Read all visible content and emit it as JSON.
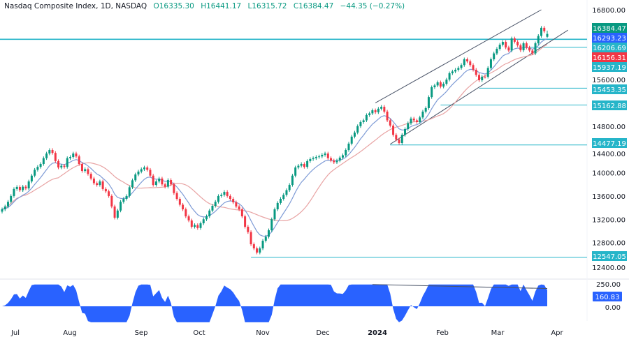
{
  "header": {
    "symbol": "Nasdaq Composite Index, 1D, NASDAQ",
    "open": "O16335.30",
    "high": "H16441.17",
    "low": "L16315.72",
    "close": "C16384.47",
    "change": "−44.35 (−0.27%)"
  },
  "colors": {
    "up": "#089981",
    "down": "#f23645",
    "ma_fast": "#7e9bd6",
    "ma_slow": "#e8a3a3",
    "level": "#26b5c9",
    "oscillator": "#2962ff",
    "trendline": "#4a5468"
  },
  "chart_data": {
    "type": "candlestick",
    "title": "Nasdaq Composite Index, 1D, NASDAQ",
    "ylim": [
      12250,
      16950
    ],
    "y_ticks": [
      "16800.00",
      "15600.00",
      "14800.00",
      "14400.00",
      "14000.00",
      "13600.00",
      "13200.00",
      "12800.00",
      "12400.00"
    ],
    "y_tick_values": [
      16800,
      15600,
      14800,
      14400,
      14000,
      13600,
      13200,
      12800,
      12400
    ],
    "x_ticks": [
      "Jul",
      "Aug",
      "Sep",
      "Oct",
      "Nov",
      "Dec",
      "2024",
      "Feb",
      "Mar",
      "Apr"
    ],
    "last_bar": {
      "open": 16335.3,
      "high": 16441.17,
      "low": 16315.72,
      "close": 16384.47
    },
    "closes": [
      13371,
      13420,
      13500,
      13600,
      13720,
      13755,
      13700,
      13760,
      13731,
      13850,
      13950,
      14050,
      14100,
      14150,
      14250,
      14330,
      14390,
      14340,
      14200,
      14090,
      14120,
      14100,
      14250,
      14270,
      14330,
      14280,
      14150,
      14030,
      14060,
      13980,
      13900,
      13820,
      13790,
      13850,
      13720,
      13680,
      13600,
      13420,
      13227,
      13350,
      13500,
      13551,
      13600,
      13750,
      13870,
      13970,
      14020,
      14060,
      14090,
      14050,
      13950,
      13790,
      13850,
      13900,
      13800,
      13760,
      13874,
      13800,
      13650,
      13551,
      13450,
      13371,
      13250,
      13180,
      13071,
      13100,
      13050,
      13131,
      13200,
      13251,
      13350,
      13431,
      13500,
      13600,
      13620,
      13670,
      13600,
      13550,
      13491,
      13420,
      13371,
      13250,
      13071,
      12980,
      12771,
      12700,
      12628,
      12700,
      12831,
      12900,
      13011,
      13200,
      13371,
      13480,
      13551,
      13620,
      13700,
      13790,
      13950,
      14090,
      14120,
      14150,
      14100,
      14200,
      14234,
      14250,
      14270,
      14280,
      14306,
      14330,
      14250,
      14210,
      14180,
      14210,
      14260,
      14300,
      14390,
      14500,
      14620,
      14690,
      14800,
      14870,
      14900,
      14990,
      15020,
      15073,
      15040,
      15100,
      15133,
      15050,
      14900,
      14810,
      14650,
      14570,
      14510,
      14650,
      14750,
      14850,
      14930,
      14900,
      14870,
      14950,
      15050,
      15110,
      15300,
      15469,
      15500,
      15553,
      15480,
      15529,
      15600,
      15709,
      15740,
      15769,
      15800,
      15850,
      15949,
      15913,
      15850,
      15769,
      15680,
      15589,
      15650,
      15649,
      15800,
      15949,
      16050,
      16129,
      16200,
      16248,
      16152,
      16100,
      16308,
      16250,
      16188,
      16104,
      16224,
      16150,
      16100,
      16050,
      16224,
      16350,
      16490,
      16430,
      16384.47
    ],
    "price_labels": [
      {
        "text": "16384.47",
        "value": 16384.47,
        "color": "#089981"
      },
      {
        "text": "16293.23",
        "value": 16293.23,
        "color": "#2962ff"
      },
      {
        "text": "16206.69",
        "value": 16206.69,
        "color": "#26b5c9"
      },
      {
        "text": "16156.31",
        "value": 16156.31,
        "color": "#f23645"
      },
      {
        "text": "15937.19",
        "value": 15937.19,
        "color": "#26b5c9"
      },
      {
        "text": "15453.35",
        "value": 15453.35,
        "color": "#26b5c9"
      },
      {
        "text": "15162.88",
        "value": 15162.88,
        "color": "#26b5c9"
      },
      {
        "text": "14477.19",
        "value": 14477.19,
        "color": "#26b5c9"
      },
      {
        "text": "12547.05",
        "value": 12547.05,
        "color": "#26b5c9"
      }
    ],
    "levels": [
      {
        "value": 16293.23,
        "from_bar": 0
      },
      {
        "value": 16156.31,
        "from_bar": 178
      },
      {
        "value": 15453.35,
        "from_bar": 161
      },
      {
        "value": 15162.88,
        "from_bar": 148
      },
      {
        "value": 14477.19,
        "from_bar": 131
      },
      {
        "value": 12547.05,
        "from_bar": 84
      }
    ],
    "channel": {
      "upper": [
        [
          126,
          15200
        ],
        [
          182,
          16800
        ]
      ],
      "lower": [
        [
          131,
          14490
        ],
        [
          191,
          16450
        ]
      ]
    },
    "oscillator": {
      "y_ticks": [
        "250.00",
        "0.00"
      ],
      "y_tick_values": [
        250,
        0
      ],
      "last_value": "160.83",
      "trendline": [
        [
          125,
          300
        ],
        [
          184,
          245
        ]
      ]
    }
  }
}
